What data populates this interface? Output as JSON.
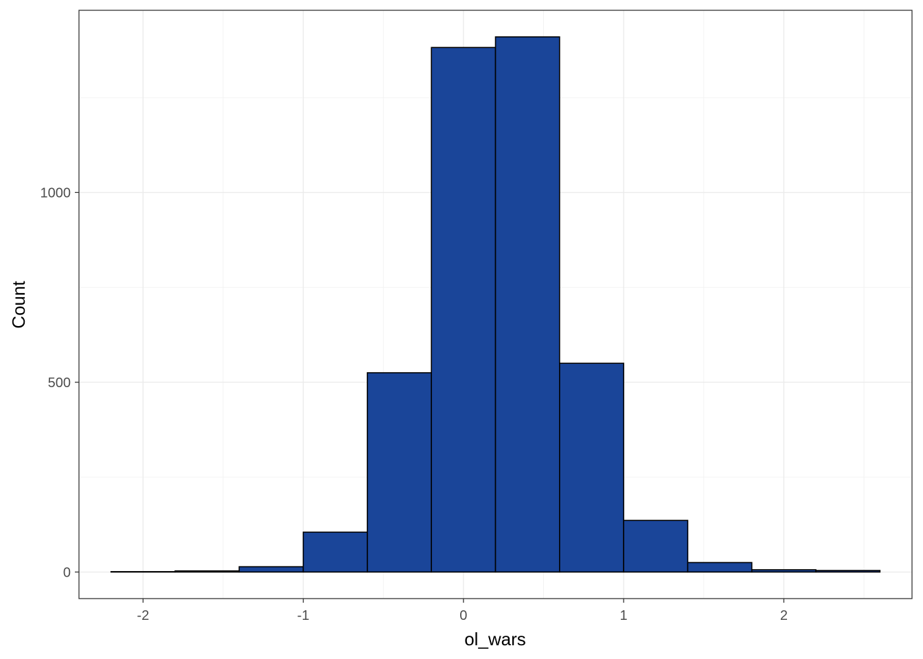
{
  "chart_data": {
    "type": "bar",
    "subtype": "histogram",
    "xlabel": "ol_wars",
    "ylabel": "Count",
    "xlim": [
      -2.4,
      2.8
    ],
    "ylim": [
      -70,
      1480
    ],
    "x_ticks": [
      -2,
      -1,
      0,
      1,
      2
    ],
    "x_tick_labels": [
      "-2",
      "-1",
      "0",
      "1",
      "2"
    ],
    "y_ticks": [
      0,
      500,
      1000
    ],
    "y_tick_labels": [
      "0",
      "500",
      "1000"
    ],
    "x_minor_ticks": [
      -1.5,
      -0.5,
      0.5,
      1.5,
      2.5
    ],
    "y_minor_ticks": [
      250,
      750,
      1250
    ],
    "bins": [
      {
        "x0": -2.2,
        "x1": -1.8,
        "count": 1
      },
      {
        "x0": -1.8,
        "x1": -1.4,
        "count": 3
      },
      {
        "x0": -1.4,
        "x1": -1.0,
        "count": 14
      },
      {
        "x0": -1.0,
        "x1": -0.6,
        "count": 105
      },
      {
        "x0": -0.6,
        "x1": -0.2,
        "count": 525
      },
      {
        "x0": -0.2,
        "x1": 0.2,
        "count": 1382
      },
      {
        "x0": 0.2,
        "x1": 0.6,
        "count": 1410
      },
      {
        "x0": 0.6,
        "x1": 1.0,
        "count": 550
      },
      {
        "x0": 1.0,
        "x1": 1.4,
        "count": 136
      },
      {
        "x0": 1.4,
        "x1": 1.8,
        "count": 25
      },
      {
        "x0": 1.8,
        "x1": 2.2,
        "count": 6
      },
      {
        "x0": 2.2,
        "x1": 2.6,
        "count": 4
      }
    ],
    "bar_color": "#1A4599",
    "bar_outline": "#000000",
    "grid": true,
    "theme": "bw"
  }
}
